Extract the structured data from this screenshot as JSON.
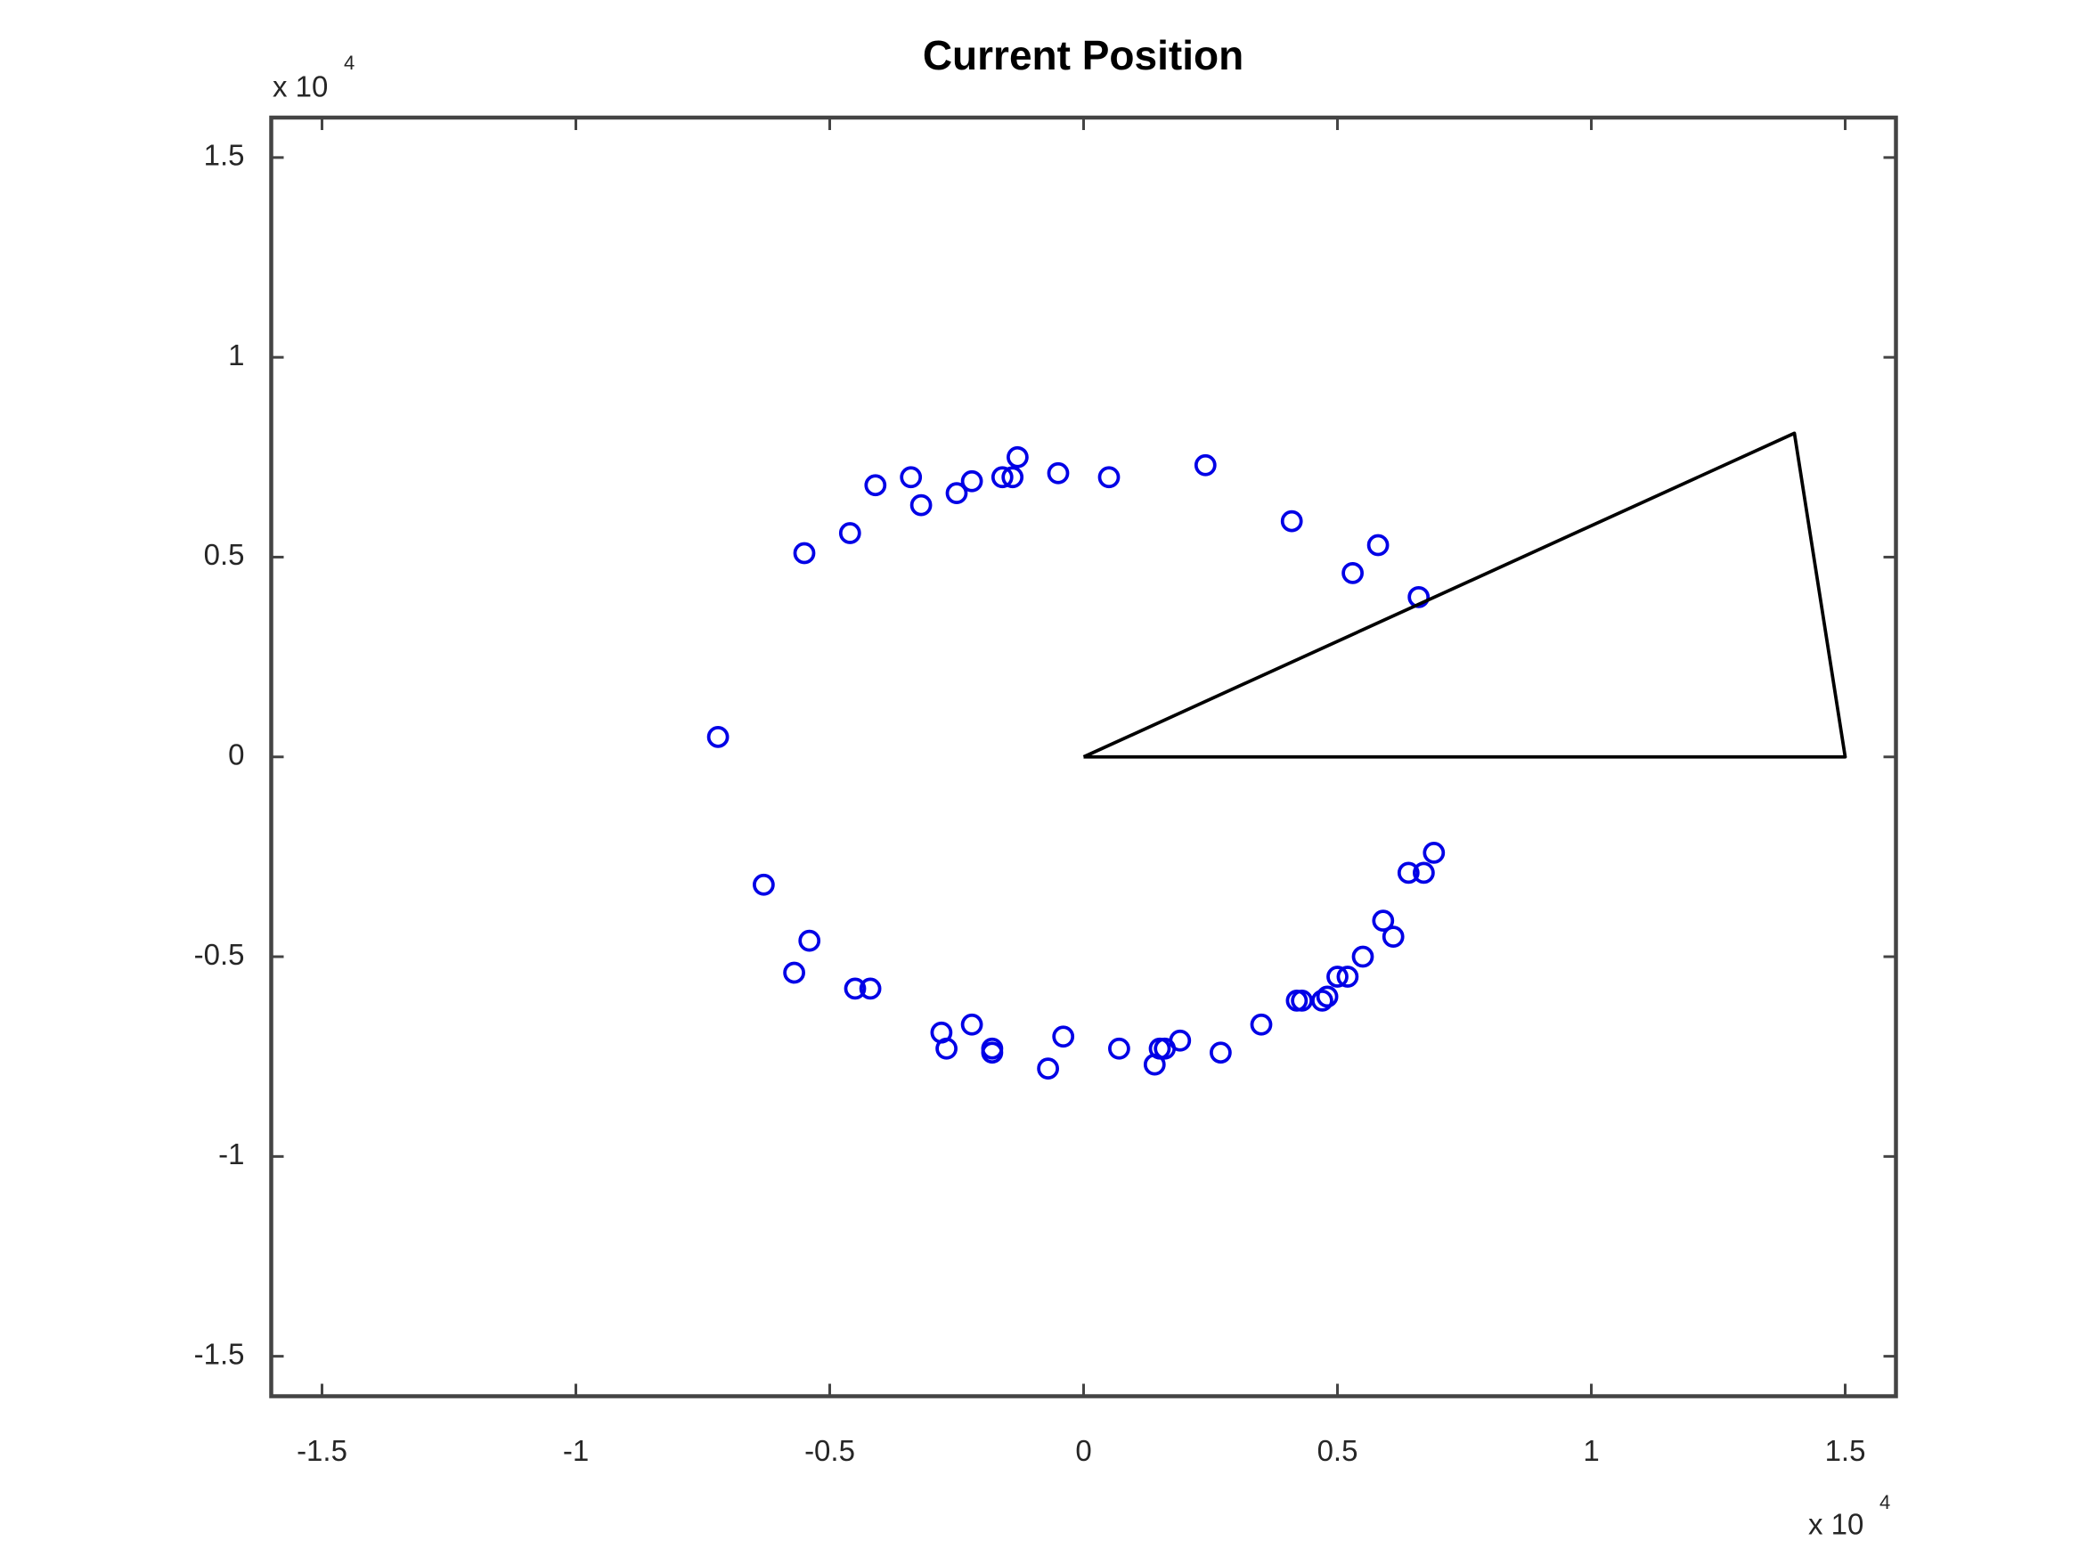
{
  "chart_data": {
    "type": "scatter",
    "title": "Current Position",
    "series": [
      {
        "type": "scatter",
        "marker": "circle",
        "color": "#0000e6",
        "x": [
          -0.72,
          -0.55,
          -0.46,
          -0.41,
          -0.34,
          -0.32,
          -0.25,
          -0.22,
          -0.16,
          -0.14,
          -0.13,
          -0.05,
          0.05,
          0.24,
          0.41,
          0.58,
          0.53,
          0.66,
          0.69,
          0.64,
          0.67,
          0.59,
          0.61,
          0.55,
          0.5,
          0.52,
          0.42,
          0.43,
          0.47,
          0.48,
          0.35,
          0.27,
          0.19,
          0.16,
          0.15,
          0.14,
          0.07,
          -0.04,
          -0.07,
          -0.18,
          -0.18,
          -0.22,
          -0.28,
          -0.27,
          -0.42,
          -0.45,
          -0.57,
          -0.54,
          -0.63
        ],
        "y": [
          0.05,
          0.51,
          0.56,
          0.68,
          0.7,
          0.63,
          0.66,
          0.69,
          0.7,
          0.7,
          0.75,
          0.71,
          0.7,
          0.73,
          0.59,
          0.53,
          0.46,
          0.4,
          -0.24,
          -0.29,
          -0.29,
          -0.41,
          -0.45,
          -0.5,
          -0.55,
          -0.55,
          -0.61,
          -0.61,
          -0.61,
          -0.6,
          -0.67,
          -0.74,
          -0.71,
          -0.73,
          -0.73,
          -0.77,
          -0.73,
          -0.7,
          -0.78,
          -0.73,
          -0.74,
          -0.67,
          -0.69,
          -0.73,
          -0.58,
          -0.58,
          -0.54,
          -0.46,
          -0.32
        ]
      },
      {
        "type": "line",
        "color": "#000000",
        "x": [
          0,
          1.4,
          1.5,
          0
        ],
        "y": [
          0,
          0.81,
          0,
          0
        ]
      }
    ],
    "xlim": [
      -1.6,
      1.6
    ],
    "ylim": [
      -1.6,
      1.6
    ],
    "xticks": [
      -1.5,
      -1,
      -0.5,
      0,
      0.5,
      1,
      1.5
    ],
    "yticks": [
      -1.5,
      -1,
      -0.5,
      0,
      0.5,
      1,
      1.5
    ],
    "x_multiplier": {
      "base": "x 10",
      "exponent": "4"
    },
    "y_multiplier": {
      "base": "x 10",
      "exponent": "4"
    },
    "grid": false
  }
}
